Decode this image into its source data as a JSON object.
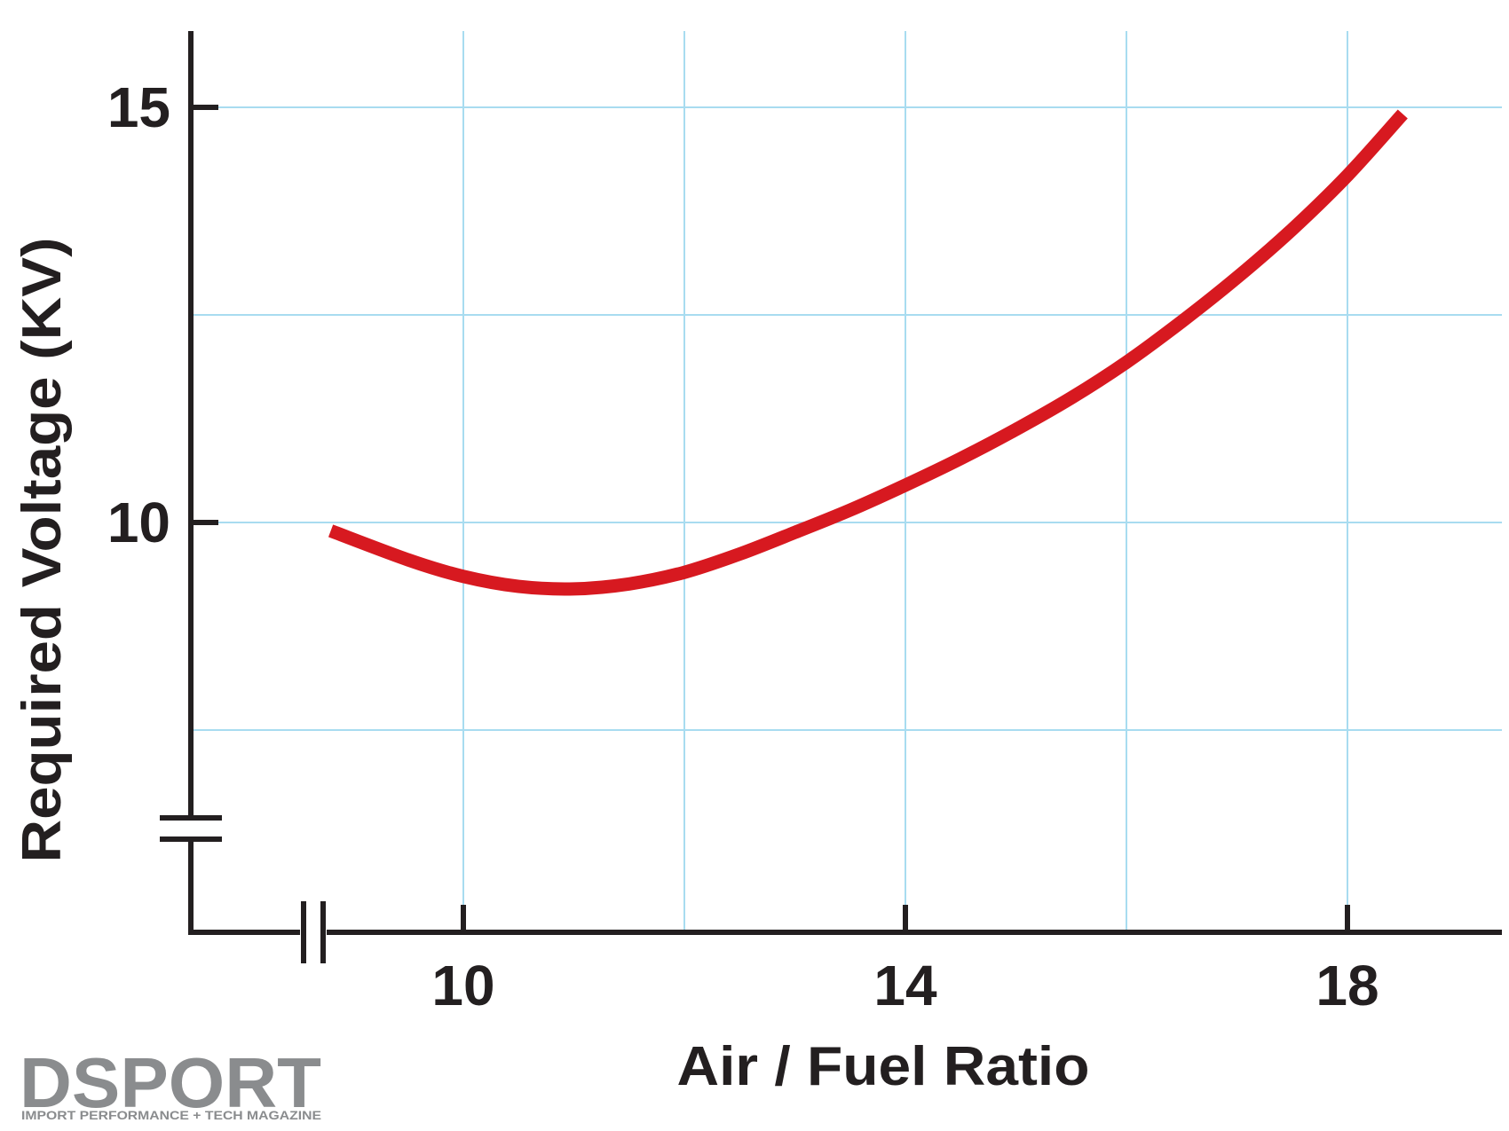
{
  "chart_data": {
    "type": "line",
    "title": "",
    "xlabel": "Air / Fuel Ratio",
    "ylabel": "Required Voltage (KV)",
    "x_ticks": [
      10,
      14,
      18
    ],
    "x_ticks_text": [
      "10",
      "14",
      "18"
    ],
    "y_ticks": [
      10,
      15
    ],
    "y_ticks_text": [
      "10",
      "15"
    ],
    "xlim": [
      7.5,
      19.5
    ],
    "ylim": [
      5,
      16
    ],
    "x_grid": [
      10,
      12,
      14,
      16,
      18,
      20
    ],
    "y_grid": [
      7.5,
      10,
      12.5,
      15
    ],
    "grid": true,
    "x_axis_break": true,
    "y_axis_break": true,
    "series": [
      {
        "color": "#d71920",
        "x": [
          8.8,
          9.5,
          10.0,
          10.5,
          11.0,
          11.5,
          12.0,
          12.5,
          13.0,
          13.5,
          14.0,
          14.5,
          15.0,
          15.5,
          16.0,
          16.5,
          17.0,
          17.5,
          18.0,
          18.5
        ],
        "y": [
          9.9,
          9.55,
          9.35,
          9.23,
          9.2,
          9.26,
          9.4,
          9.62,
          9.88,
          10.15,
          10.45,
          10.77,
          11.12,
          11.5,
          11.93,
          12.42,
          12.95,
          13.53,
          14.18,
          14.92
        ]
      }
    ]
  },
  "logo": {
    "name": "DSPORT",
    "tagline": "IMPORT PERFORMANCE + TECH MAGAZINE"
  },
  "colors": {
    "axis": "#231f20",
    "grid": "#a8dcf0",
    "line": "#d71920",
    "logo": "#8a8c8e"
  }
}
